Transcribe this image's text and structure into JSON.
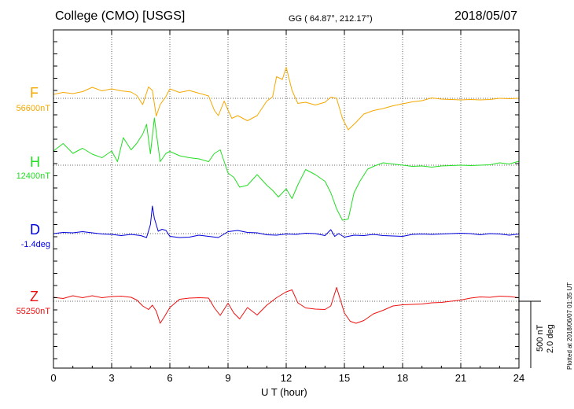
{
  "header": {
    "title": "College (CMO)  [USGS]",
    "coords": "GG ( 64.87°, 212.17°)",
    "date": "2018/05/07"
  },
  "footer": {
    "plotted": "Plotted at 2018/06/07 01:35 UT"
  },
  "chart_data": {
    "type": "line",
    "title": "College (CMO)  [USGS]",
    "xlabel": "U T (hour)",
    "ylabel": "",
    "xlim": [
      0,
      24
    ],
    "xticks": [
      "0",
      "3",
      "6",
      "9",
      "12",
      "15",
      "18",
      "21",
      "24"
    ],
    "grid": true,
    "scale_bar": {
      "label1": "500 nT",
      "label2": "2.0 deg",
      "value_nT": 500,
      "value_deg": 2.0
    },
    "series": [
      {
        "name": "F",
        "baseline_label": "56600nT",
        "baseline": 56600,
        "unit": "nT",
        "color": "#f5a800",
        "x": [
          0,
          0.5,
          1,
          1.5,
          2,
          2.5,
          3,
          3.5,
          4,
          4.3,
          4.6,
          4.9,
          5.1,
          5.3,
          5.5,
          5.8,
          6,
          6.5,
          7,
          7.5,
          8,
          8.3,
          8.5,
          8.8,
          9,
          9.2,
          9.5,
          10,
          10.5,
          11,
          11.3,
          11.5,
          11.8,
          12,
          12.3,
          12.6,
          13,
          13.5,
          14,
          14.3,
          14.6,
          14.9,
          15.2,
          15.6,
          16,
          16.5,
          17,
          17.5,
          18,
          18.5,
          19,
          19.5,
          20,
          20.5,
          21,
          21.5,
          22,
          22.5,
          23,
          23.5,
          24
        ],
        "y": [
          -5,
          -8,
          -6,
          -9,
          -14,
          -10,
          -12,
          -10,
          -8,
          -4,
          8,
          -15,
          -10,
          22,
          8,
          -3,
          -12,
          -8,
          -10,
          -7,
          -3,
          15,
          22,
          3,
          15,
          25,
          22,
          28,
          22,
          3,
          -2,
          -28,
          -24,
          -40,
          -10,
          6,
          5,
          8,
          5,
          -2,
          0,
          25,
          40,
          30,
          20,
          15,
          13,
          9,
          7,
          4,
          3,
          -1,
          1,
          1,
          2,
          1,
          2,
          1,
          0,
          0,
          0
        ]
      },
      {
        "name": "H",
        "baseline_label": "12400nT",
        "baseline": 12400,
        "unit": "nT",
        "color": "#22dd22",
        "x": [
          0,
          0.5,
          1,
          1.5,
          2,
          2.5,
          3,
          3.3,
          3.6,
          4,
          4.3,
          4.6,
          4.8,
          5,
          5.2,
          5.5,
          5.8,
          6,
          6.5,
          7,
          7.5,
          8,
          8.3,
          8.6,
          9,
          9.3,
          9.6,
          10,
          10.5,
          11,
          11.3,
          11.6,
          12,
          12.3,
          12.6,
          13,
          13.5,
          14,
          14.3,
          14.6,
          14.9,
          15.2,
          15.5,
          15.8,
          16.2,
          16.6,
          17,
          17.5,
          18,
          18.5,
          19,
          19.5,
          20,
          20.5,
          21,
          21.5,
          22,
          22.5,
          23,
          23.5,
          24
        ],
        "y": [
          -18,
          -28,
          -15,
          -22,
          -14,
          -10,
          -18,
          -5,
          -35,
          -20,
          -28,
          -40,
          -52,
          -15,
          -60,
          -5,
          -15,
          -18,
          -12,
          -10,
          -8,
          -5,
          -15,
          -20,
          10,
          15,
          28,
          25,
          12,
          25,
          32,
          40,
          30,
          42,
          25,
          5,
          12,
          20,
          35,
          55,
          70,
          68,
          35,
          20,
          5,
          0,
          -3,
          -2,
          0,
          1,
          1,
          2,
          1,
          0,
          0,
          0,
          0,
          -1,
          -3,
          -2,
          -5
        ]
      },
      {
        "name": "D",
        "baseline_label": "-1.4deg",
        "baseline": -1.4,
        "unit": "deg",
        "color": "#0000dd",
        "x": [
          0,
          0.5,
          1,
          1.5,
          2,
          2.5,
          3,
          3.5,
          4,
          4.5,
          4.8,
          5.0,
          5.1,
          5.2,
          5.4,
          5.6,
          5.8,
          6,
          6.5,
          7,
          7.5,
          8,
          8.5,
          9,
          9.5,
          10,
          10.5,
          11,
          11.5,
          12,
          12.5,
          13,
          13.5,
          14,
          14.3,
          14.5,
          14.7,
          15,
          15.5,
          16,
          16.5,
          17,
          17.5,
          18,
          18.5,
          19,
          19.5,
          20,
          20.5,
          21,
          21.5,
          22,
          22.5,
          23,
          23.5,
          24
        ],
        "y": [
          0,
          -2,
          -1,
          -3,
          -1,
          0,
          1,
          2,
          1,
          2,
          5,
          -12,
          -35,
          -20,
          -3,
          -6,
          -4,
          3,
          5,
          4,
          2,
          3,
          5,
          -3,
          -4,
          -2,
          -1,
          1,
          2,
          0,
          1,
          -1,
          0,
          2,
          -5,
          3,
          0,
          4,
          2,
          2,
          1,
          2,
          3,
          3,
          1,
          0,
          1,
          0,
          0,
          -1,
          0,
          1,
          0,
          0,
          2,
          0
        ]
      },
      {
        "name": "Z",
        "baseline_label": "55250nT",
        "baseline": 55250,
        "unit": "nT",
        "color": "#ee1111",
        "x": [
          0,
          0.5,
          1,
          1.5,
          2,
          2.5,
          3,
          3.5,
          4,
          4.3,
          4.6,
          4.9,
          5.1,
          5.3,
          5.5,
          5.7,
          6,
          6.5,
          7,
          7.5,
          8,
          8.3,
          8.6,
          9,
          9.3,
          9.6,
          10,
          10.5,
          11,
          11.5,
          12,
          12.3,
          12.6,
          13,
          13.5,
          14,
          14.3,
          14.6,
          15,
          15.3,
          15.6,
          16,
          16.5,
          17,
          17.5,
          18,
          18.5,
          19,
          19.5,
          20,
          20.5,
          21,
          21.5,
          22,
          22.5,
          23,
          23.5,
          24
        ],
        "y": [
          -5,
          -4,
          -7,
          -5,
          -7,
          -5,
          -6,
          -7,
          -5,
          -2,
          6,
          10,
          5,
          12,
          28,
          20,
          8,
          -3,
          -4,
          -5,
          -4,
          8,
          18,
          2,
          15,
          22,
          8,
          17,
          5,
          -5,
          -12,
          -15,
          2,
          8,
          10,
          10,
          6,
          -18,
          15,
          25,
          28,
          24,
          16,
          11,
          6,
          4,
          4,
          3,
          2,
          1,
          0,
          -2,
          -4,
          -6,
          -5,
          -7,
          -6,
          -5
        ]
      }
    ]
  }
}
